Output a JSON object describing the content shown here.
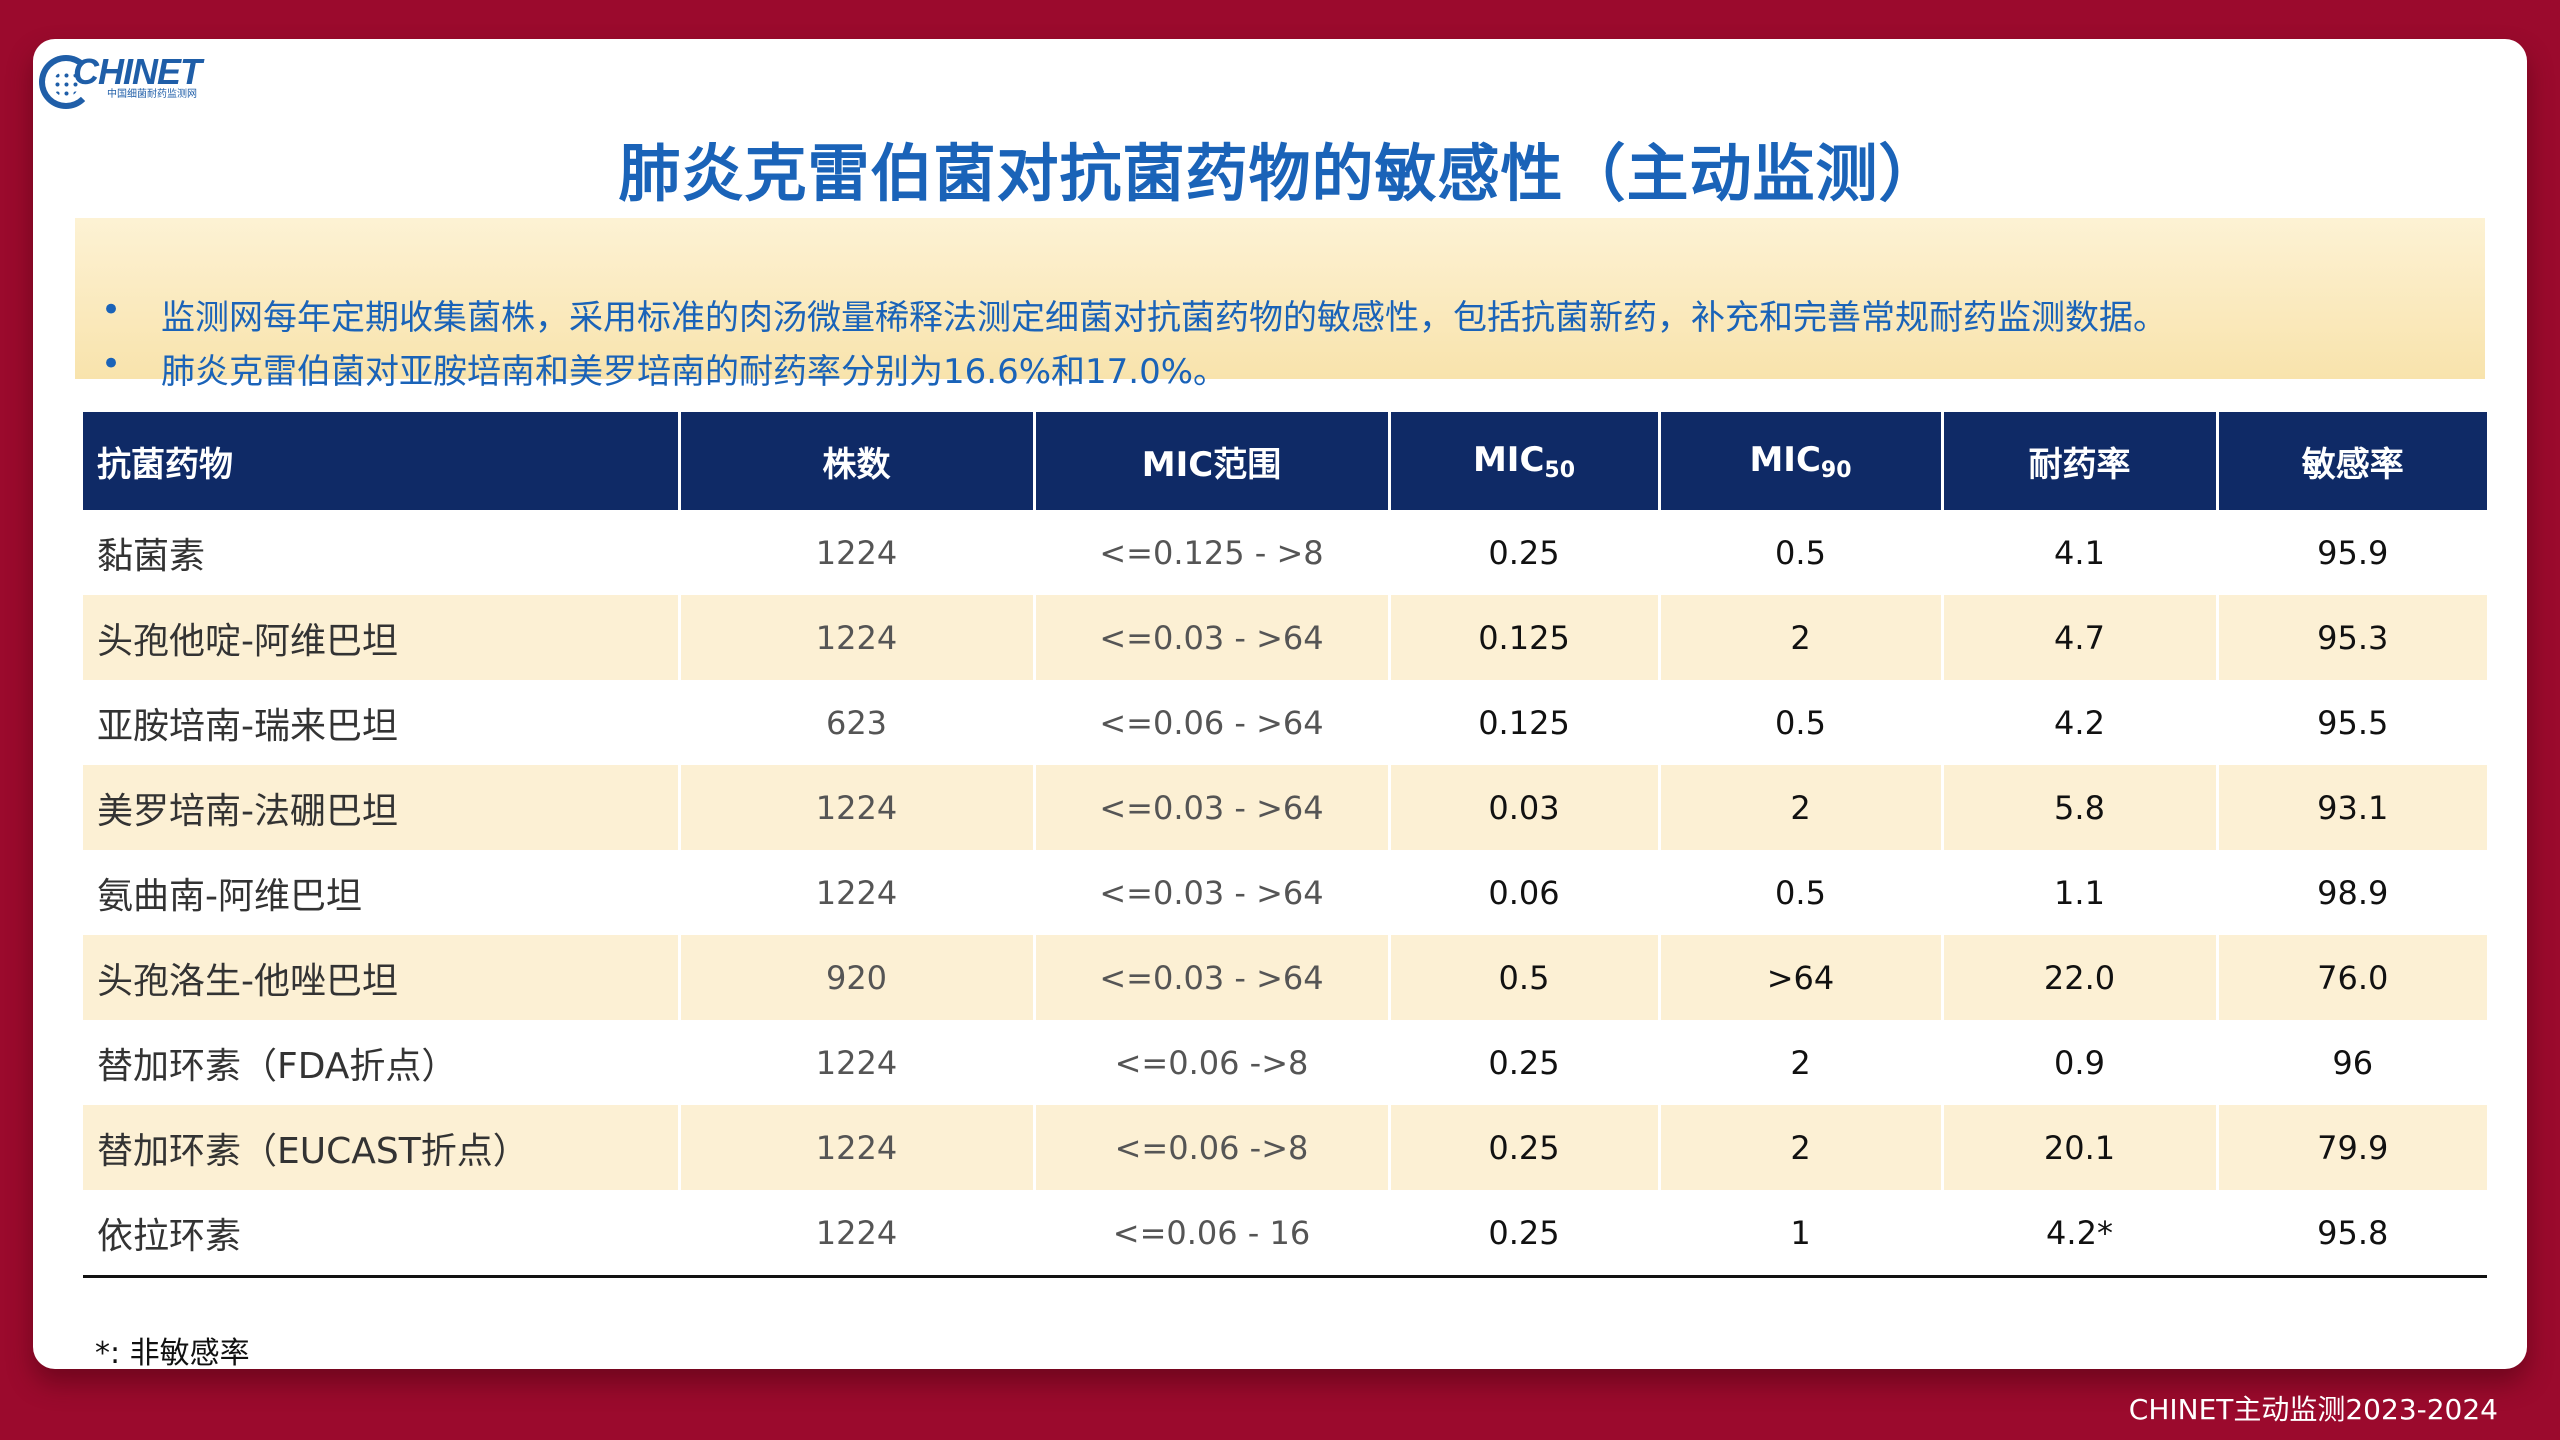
{
  "logo": {
    "word": "CHINET",
    "sub": "中国细菌耐药监测网"
  },
  "title": "肺炎克雷伯菌对抗菌药物的敏感性（主动监测）",
  "notes": [
    {
      "bullet": "•",
      "text": "监测网每年定期收集菌株，采用标准的肉汤微量稀释法测定细菌对抗菌药物的敏感性，包括抗菌新药，补充和完善常规耐药监测数据。"
    },
    {
      "bullet": "•",
      "text": "肺炎克雷伯菌对亚胺培南和美罗培南的耐药率分别为16.6%和17.0%。"
    }
  ],
  "table": {
    "headers": {
      "drug": "抗菌药物",
      "count": "株数",
      "range": "MIC范围",
      "mic50_base": "MIC",
      "mic50_sub": "50",
      "mic90_base": "MIC",
      "mic90_sub": "90",
      "resist": "耐药率",
      "sens": "敏感率"
    },
    "rows": [
      {
        "drug": "黏菌素",
        "count": "1224",
        "range": "<=0.125 - >8",
        "mic50": "0.25",
        "mic90": "0.5",
        "resist": "4.1",
        "sens": "95.9"
      },
      {
        "drug": "头孢他啶-阿维巴坦",
        "count": "1224",
        "range": "<=0.03 - >64",
        "mic50": "0.125",
        "mic90": "2",
        "resist": "4.7",
        "sens": "95.3"
      },
      {
        "drug": "亚胺培南-瑞来巴坦",
        "count": "623",
        "range": "<=0.06 - >64",
        "mic50": "0.125",
        "mic90": "0.5",
        "resist": "4.2",
        "sens": "95.5"
      },
      {
        "drug": "美罗培南-法硼巴坦",
        "count": "1224",
        "range": "<=0.03 - >64",
        "mic50": "0.03",
        "mic90": "2",
        "resist": "5.8",
        "sens": "93.1"
      },
      {
        "drug": "氨曲南-阿维巴坦",
        "count": "1224",
        "range": "<=0.03 - >64",
        "mic50": "0.06",
        "mic90": "0.5",
        "resist": "1.1",
        "sens": "98.9"
      },
      {
        "drug": "头孢洛生-他唑巴坦",
        "count": "920",
        "range": "<=0.03 - >64",
        "mic50": "0.5",
        "mic90": ">64",
        "resist": "22.0",
        "sens": "76.0"
      },
      {
        "drug": "替加环素（FDA折点）",
        "count": "1224",
        "range": "<=0.06 ->8",
        "mic50": "0.25",
        "mic90": "2",
        "resist": "0.9",
        "sens": "96"
      },
      {
        "drug": "替加环素（EUCAST折点）",
        "count": "1224",
        "range": "<=0.06 ->8",
        "mic50": "0.25",
        "mic90": "2",
        "resist": "20.1",
        "sens": "79.9"
      },
      {
        "drug": "依拉环素",
        "count": "1224",
        "range": "<=0.06 - 16",
        "mic50": "0.25",
        "mic90": "1",
        "resist": "4.2*",
        "sens": "95.8"
      }
    ]
  },
  "footnote": "*: 非敏感率",
  "footer": "CHINET主动监测2023-2024",
  "colors": {
    "background": "#9b0a2d",
    "title": "#1a63b8",
    "header": "#0f2a66",
    "stripe": "#fcf0d4"
  }
}
